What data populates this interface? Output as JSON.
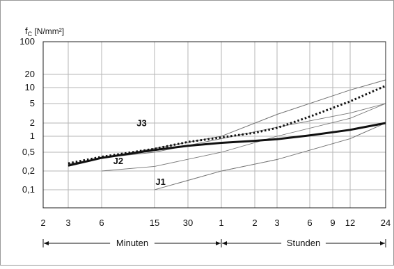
{
  "chart_data": {
    "type": "line",
    "ylabel": "f",
    "ylabel_sub": "C",
    "ylabel_unit": " [N/mm²]",
    "y_scale": "log",
    "ylim": [
      0.05,
      100
    ],
    "x_scale": "log",
    "grid": true,
    "x_ticks": [
      "2",
      "3",
      "6",
      "15",
      "30",
      "1",
      "2",
      "3",
      "6",
      "9",
      "12",
      "24"
    ],
    "y_ticks": [
      "100",
      "20",
      "10",
      "5",
      "2",
      "1",
      "0,5",
      "0,2",
      "0,1"
    ],
    "time_ranges": [
      {
        "label": "Minuten",
        "from": "3",
        "to": "1"
      },
      {
        "label": "Stunden",
        "from": "1",
        "to": "24"
      }
    ],
    "x_unit_note": "x values in minutes",
    "bands": [
      {
        "name": "J3",
        "lower": [
          [
            3,
            0.28
          ],
          [
            60,
            1.0
          ],
          [
            180,
            3.0
          ],
          [
            720,
            9.0
          ],
          [
            1440,
            15.0
          ]
        ],
        "upper": [
          [
            3,
            0.28
          ],
          [
            60,
            1.0
          ],
          [
            180,
            3.0
          ],
          [
            720,
            9.0
          ],
          [
            1440,
            15.0
          ]
        ]
      },
      {
        "name": "J2",
        "lower": [
          [
            6,
            0.2
          ],
          [
            15,
            0.25
          ],
          [
            60,
            0.5
          ],
          [
            180,
            1.0
          ],
          [
            720,
            2.5
          ],
          [
            1440,
            5.0
          ]
        ],
        "upper": [
          [
            6,
            0.38
          ],
          [
            15,
            0.5
          ],
          [
            60,
            0.9
          ],
          [
            180,
            1.6
          ],
          [
            720,
            3.2
          ],
          [
            1440,
            5.0
          ]
        ]
      },
      {
        "name": "J1",
        "lower": [
          [
            15,
            0.1
          ],
          [
            60,
            0.2
          ],
          [
            180,
            0.35
          ],
          [
            720,
            0.9
          ],
          [
            1440,
            2.0
          ]
        ],
        "upper": [
          [
            15,
            0.1
          ],
          [
            60,
            0.2
          ],
          [
            180,
            0.35
          ],
          [
            720,
            0.9
          ],
          [
            1440,
            2.0
          ]
        ]
      }
    ],
    "band_labels": [
      {
        "name": "J3",
        "x": 12,
        "y": 1.7
      },
      {
        "name": "J2",
        "x": 8,
        "y": 0.28
      },
      {
        "name": "J1",
        "x": 17,
        "y": 0.12
      }
    ],
    "series": [
      {
        "style": "solid",
        "points": [
          [
            3,
            0.26
          ],
          [
            6,
            0.38
          ],
          [
            15,
            0.55
          ],
          [
            30,
            0.66
          ],
          [
            60,
            0.75
          ],
          [
            120,
            0.82
          ],
          [
            180,
            0.88
          ],
          [
            360,
            1.05
          ],
          [
            720,
            1.4
          ],
          [
            1440,
            2.0
          ]
        ]
      },
      {
        "style": "dotted",
        "points": [
          [
            3,
            0.29
          ],
          [
            6,
            0.4
          ],
          [
            15,
            0.58
          ],
          [
            30,
            0.78
          ],
          [
            60,
            0.95
          ],
          [
            120,
            1.2
          ],
          [
            180,
            1.55
          ],
          [
            360,
            2.7
          ],
          [
            720,
            5.5
          ],
          [
            1440,
            11.0
          ]
        ]
      }
    ]
  }
}
